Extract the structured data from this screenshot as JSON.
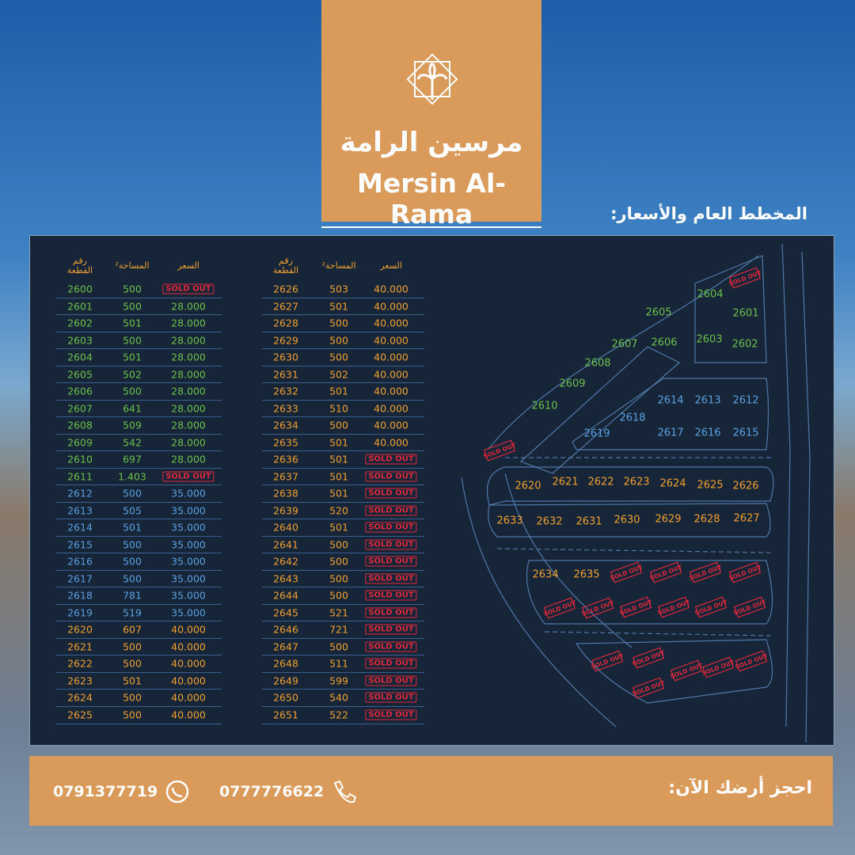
{
  "header": {
    "title_ar": "مرسين الرامة",
    "title_en": "Mersin Al-Rama"
  },
  "subtitle": "المخطط العام والأسعار:",
  "tables": [
    {
      "headers": [
        "رقم القطعة",
        "المساحة²",
        "السعر"
      ],
      "rows": [
        [
          "2600",
          "500",
          "SOLD OUT"
        ],
        [
          "2601",
          "500",
          "28.000"
        ],
        [
          "2602",
          "501",
          "28.000"
        ],
        [
          "2603",
          "500",
          "28.000"
        ],
        [
          "2604",
          "501",
          "28.000"
        ],
        [
          "2605",
          "502",
          "28.000"
        ],
        [
          "2606",
          "500",
          "28.000"
        ],
        [
          "2607",
          "641",
          "28.000"
        ],
        [
          "2608",
          "509",
          "28.000"
        ],
        [
          "2609",
          "542",
          "28.000"
        ],
        [
          "2610",
          "697",
          "28.000"
        ],
        [
          "2611",
          "1.403",
          "SOLD OUT"
        ],
        [
          "2612",
          "500",
          "35.000"
        ],
        [
          "2613",
          "505",
          "35.000"
        ],
        [
          "2614",
          "501",
          "35.000"
        ],
        [
          "2615",
          "500",
          "35.000"
        ],
        [
          "2616",
          "500",
          "35.000"
        ],
        [
          "2617",
          "500",
          "35.000"
        ],
        [
          "2618",
          "781",
          "35.000"
        ],
        [
          "2619",
          "519",
          "35.000"
        ],
        [
          "2620",
          "607",
          "40.000"
        ],
        [
          "2621",
          "500",
          "40.000"
        ],
        [
          "2622",
          "500",
          "40.000"
        ],
        [
          "2623",
          "501",
          "40.000"
        ],
        [
          "2624",
          "500",
          "40.000"
        ],
        [
          "2625",
          "500",
          "40.000"
        ]
      ],
      "colors": [
        "#6cc04a",
        "#6cc04a",
        "#6cc04a",
        "#6cc04a",
        "#6cc04a",
        "#6cc04a",
        "#6cc04a",
        "#6cc04a",
        "#6cc04a",
        "#6cc04a",
        "#6cc04a",
        "#6cc04a",
        "#5aa0e0",
        "#5aa0e0",
        "#5aa0e0",
        "#5aa0e0",
        "#5aa0e0",
        "#5aa0e0",
        "#5aa0e0",
        "#5aa0e0",
        "#f0a030",
        "#f0a030",
        "#f0a030",
        "#f0a030",
        "#f0a030",
        "#f0a030"
      ]
    },
    {
      "headers": [
        "رقم القطعة",
        "المساحة²",
        "السعر"
      ],
      "rows": [
        [
          "2626",
          "503",
          "40.000"
        ],
        [
          "2627",
          "501",
          "40.000"
        ],
        [
          "2628",
          "500",
          "40.000"
        ],
        [
          "2629",
          "500",
          "40.000"
        ],
        [
          "2630",
          "500",
          "40.000"
        ],
        [
          "2631",
          "502",
          "40.000"
        ],
        [
          "2632",
          "501",
          "40.000"
        ],
        [
          "2633",
          "510",
          "40.000"
        ],
        [
          "2634",
          "500",
          "40.000"
        ],
        [
          "2635",
          "501",
          "40.000"
        ],
        [
          "2636",
          "501",
          "SOLD OUT"
        ],
        [
          "2637",
          "501",
          "SOLD OUT"
        ],
        [
          "2638",
          "501",
          "SOLD OUT"
        ],
        [
          "2639",
          "520",
          "SOLD OUT"
        ],
        [
          "2640",
          "501",
          "SOLD OUT"
        ],
        [
          "2641",
          "500",
          "SOLD OUT"
        ],
        [
          "2642",
          "500",
          "SOLD OUT"
        ],
        [
          "2643",
          "500",
          "SOLD OUT"
        ],
        [
          "2644",
          "500",
          "SOLD OUT"
        ],
        [
          "2645",
          "521",
          "SOLD OUT"
        ],
        [
          "2646",
          "721",
          "SOLD OUT"
        ],
        [
          "2647",
          "500",
          "SOLD OUT"
        ],
        [
          "2648",
          "511",
          "SOLD OUT"
        ],
        [
          "2649",
          "599",
          "SOLD OUT"
        ],
        [
          "2650",
          "540",
          "SOLD OUT"
        ],
        [
          "2651",
          "522",
          "SOLD OUT"
        ]
      ],
      "colors": [
        "#f0a030",
        "#f0a030",
        "#f0a030",
        "#f0a030",
        "#f0a030",
        "#f0a030",
        "#f0a030",
        "#f0a030",
        "#f0a030",
        "#f0a030",
        "#f0a030",
        "#f0a030",
        "#f0a030",
        "#f0a030",
        "#f0a030",
        "#f0a030",
        "#f0a030",
        "#f0a030",
        "#f0a030",
        "#f0a030",
        "#f0a030",
        "#f0a030",
        "#f0a030",
        "#f0a030",
        "#f0a030",
        "#f0a030"
      ]
    }
  ],
  "map": {
    "stamp": "SOLD OUT",
    "plots": [
      "2604",
      "2601",
      "2603",
      "2602",
      "2605",
      "2606",
      "2607",
      "2608",
      "2609",
      "2610",
      "2614",
      "2613",
      "2612",
      "2618",
      "2619",
      "2617",
      "2616",
      "2615",
      "2620",
      "2621",
      "2622",
      "2623",
      "2624",
      "2625",
      "2626",
      "2633",
      "2632",
      "2631",
      "2630",
      "2629",
      "2628",
      "2627",
      "2634",
      "2635"
    ],
    "colors": [
      "#6cc04a",
      "#6cc04a",
      "#6cc04a",
      "#6cc04a",
      "#6cc04a",
      "#6cc04a",
      "#6cc04a",
      "#6cc04a",
      "#6cc04a",
      "#6cc04a",
      "#5aa0e0",
      "#5aa0e0",
      "#5aa0e0",
      "#5aa0e0",
      "#5aa0e0",
      "#5aa0e0",
      "#5aa0e0",
      "#5aa0e0",
      "#f0a030",
      "#f0a030",
      "#f0a030",
      "#f0a030",
      "#f0a030",
      "#f0a030",
      "#f0a030",
      "#f0a030",
      "#f0a030",
      "#f0a030",
      "#f0a030",
      "#f0a030",
      "#f0a030",
      "#f0a030",
      "#f0a030",
      "#f0a030"
    ]
  },
  "footer": {
    "cta": "احجز أرضك الآن:",
    "phones": [
      "0777776622",
      "0791377719"
    ]
  }
}
